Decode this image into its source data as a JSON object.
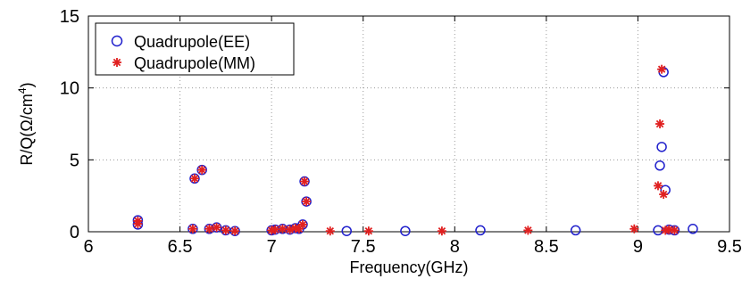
{
  "chart_data": {
    "type": "scatter",
    "title": "",
    "xlabel": "Frequency(GHz)",
    "ylabel_prefix": "R/Q(",
    "ylabel_omega": "Ω",
    "ylabel_unit": "/cm",
    "ylabel_exp": "4",
    "ylabel_suffix": ")",
    "xlim": [
      6,
      9.5
    ],
    "ylim": [
      0,
      15
    ],
    "xticks": [
      "6",
      "6.5",
      "7",
      "7.5",
      "8",
      "8.5",
      "9",
      "9.5"
    ],
    "yticks": [
      "0",
      "5",
      "10",
      "15"
    ],
    "grid": true,
    "legend_position": "top-left",
    "series": [
      {
        "name": "Quadrupole(EE)",
        "marker": "circle",
        "color": "#1f1fcc",
        "x": [
          6.27,
          6.27,
          6.57,
          6.58,
          6.62,
          6.66,
          6.7,
          6.75,
          6.8,
          7.0,
          7.02,
          7.06,
          7.1,
          7.13,
          7.15,
          7.17,
          7.18,
          7.19,
          7.41,
          7.73,
          8.14,
          8.66,
          9.11,
          9.12,
          9.13,
          9.14,
          9.15,
          9.17,
          9.2,
          9.3
        ],
        "y": [
          0.8,
          0.5,
          0.2,
          3.7,
          4.3,
          0.2,
          0.3,
          0.1,
          0.05,
          0.1,
          0.15,
          0.2,
          0.15,
          0.25,
          0.2,
          0.5,
          3.5,
          2.1,
          0.05,
          0.05,
          0.1,
          0.1,
          0.1,
          4.6,
          5.9,
          11.1,
          2.9,
          0.15,
          0.1,
          0.2
        ]
      },
      {
        "name": "Quadrupole(MM)",
        "marker": "star",
        "color": "#e02020",
        "x": [
          6.27,
          6.27,
          6.57,
          6.58,
          6.62,
          6.66,
          6.7,
          6.75,
          6.8,
          7.0,
          7.02,
          7.06,
          7.1,
          7.13,
          7.15,
          7.17,
          7.18,
          7.19,
          7.32,
          7.53,
          7.93,
          8.4,
          8.98,
          9.11,
          9.12,
          9.13,
          9.14,
          9.15,
          9.17,
          9.2
        ],
        "y": [
          0.75,
          0.55,
          0.2,
          3.7,
          4.3,
          0.2,
          0.3,
          0.1,
          0.05,
          0.1,
          0.15,
          0.2,
          0.15,
          0.25,
          0.2,
          0.5,
          3.5,
          2.1,
          0.05,
          0.05,
          0.05,
          0.1,
          0.2,
          3.2,
          7.5,
          11.3,
          2.6,
          0.1,
          0.15,
          0.1
        ]
      }
    ]
  }
}
